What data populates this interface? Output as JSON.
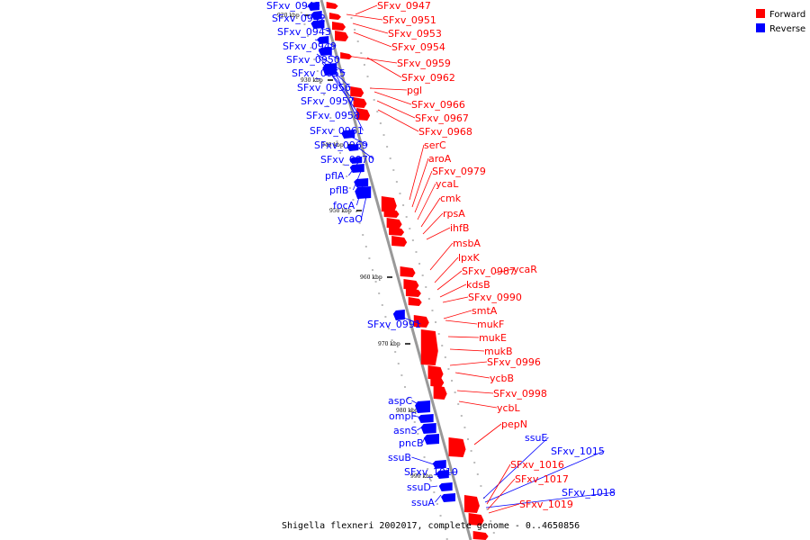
{
  "caption": "Shigella flexneri 2002017, complete genome - 0..4650856",
  "legend": [
    {
      "label": "Forward",
      "color": "#ff0000"
    },
    {
      "label": "Reverse",
      "color": "#0000ff"
    }
  ],
  "colors": {
    "forward": "#ff0000",
    "reverse": "#0000ff",
    "backbone": "#888888"
  },
  "scale_labels": [
    "920 kbp",
    "930 kbp",
    "940 kbp",
    "950 kbp",
    "960 kbp",
    "970 kbp",
    "980 kbp",
    "990 kbp"
  ],
  "genes_reverse": [
    "SFxv_0941",
    "SFxv_0942",
    "SFxv_0943",
    "SFxv_0949",
    "SFxv_0950",
    "SFxv_0955",
    "SFxv_0956",
    "SFxv_0957",
    "SFxv_0958",
    "SFxv_0961",
    "SFxv_0969",
    "SFxv_0970",
    "pflA",
    "pflB",
    "focA",
    "ycaO",
    "SFxv_0991",
    "aspC",
    "ompF",
    "asnS",
    "pncB",
    "ssuB",
    "SFxv_1010",
    "ssuD",
    "ssuA",
    "ssuE",
    "SFxv_1015",
    "SFxv_1018"
  ],
  "genes_forward": [
    "SFxv_0947",
    "SFxv_0951",
    "SFxv_0953",
    "SFxv_0954",
    "SFxv_0959",
    "SFxv_0962",
    "pgl",
    "SFxv_0966",
    "SFxv_0967",
    "SFxv_0968",
    "serC",
    "aroA",
    "SFxv_0979",
    "ycaL",
    "cmk",
    "rpsA",
    "ihfB",
    "msbA",
    "lpxK",
    "SFxv_0987",
    "ycaR",
    "kdsB",
    "SFxv_0990",
    "smtA",
    "mukF",
    "mukE",
    "mukB",
    "SFxv_0996",
    "ycbB",
    "SFxv_0998",
    "ycbL",
    "pepN",
    "SFxv_1016",
    "SFxv_1017",
    "SFxv_1019"
  ]
}
